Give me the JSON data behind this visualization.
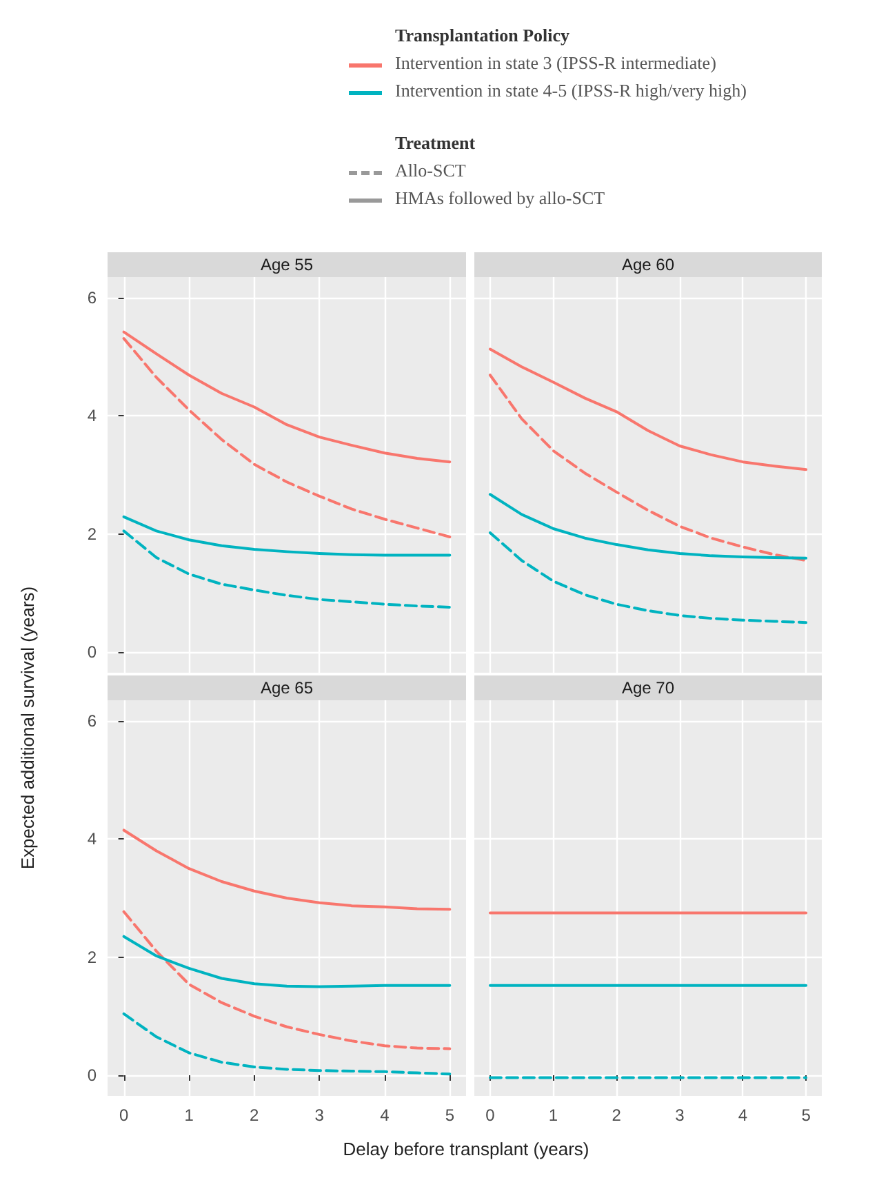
{
  "chart_data": [
    {
      "type": "line",
      "title": "Age 55",
      "legend": "top",
      "legend_title": "Transplantation Policy",
      "annotations": [
        "Treatment",
        "Allo-SCT",
        "HMAs followed by allo-SCT"
      ],
      "x": [
        0,
        0.5,
        1,
        1.5,
        2,
        2.5,
        3,
        3.5,
        4,
        4.5,
        5
      ],
      "xlim": [
        -0.25,
        5.25
      ],
      "xticks": [
        0,
        1,
        2,
        3,
        4,
        5
      ],
      "ylim": [
        -0.35,
        6.35
      ],
      "yticks": [
        0,
        2,
        4,
        6
      ],
      "grid": true,
      "tick_labels": "y",
      "series": [
        {
          "color": "#f8766d",
          "line_style": "dashed",
          "values": [
            5.31,
            4.65,
            4.1,
            3.6,
            3.18,
            2.88,
            2.64,
            2.42,
            2.25,
            2.1,
            1.95
          ]
        },
        {
          "name": "Intervention in state 3 (IPSS-R intermediate)",
          "color": "#f8766d",
          "line_style": "solid",
          "values": [
            5.42,
            5.05,
            4.69,
            4.38,
            4.15,
            3.85,
            3.64,
            3.5,
            3.37,
            3.28,
            3.22
          ]
        },
        {
          "color": "#00b3c0",
          "line_style": "dashed",
          "values": [
            2.05,
            1.6,
            1.32,
            1.15,
            1.05,
            0.96,
            0.89,
            0.85,
            0.81,
            0.78,
            0.76
          ]
        },
        {
          "name": "Intervention in state 4-5 (IPSS-R high/very high)",
          "color": "#00b3c0",
          "line_style": "solid",
          "values": [
            2.29,
            2.05,
            1.9,
            1.8,
            1.74,
            1.7,
            1.67,
            1.65,
            1.64,
            1.64,
            1.64
          ]
        }
      ]
    },
    {
      "type": "line",
      "title": "Age 60",
      "x": [
        0,
        0.5,
        1,
        1.5,
        2,
        2.5,
        3,
        3.5,
        4,
        4.5,
        5
      ],
      "xlim": [
        -0.25,
        5.25
      ],
      "xticks": [
        0,
        1,
        2,
        3,
        4,
        5
      ],
      "ylim": [
        -0.35,
        6.35
      ],
      "yticks": [
        0,
        2,
        4,
        6
      ],
      "grid": true,
      "tick_labels": false,
      "series": [
        {
          "color": "#f8766d",
          "line_style": "dashed",
          "values": [
            4.69,
            3.95,
            3.41,
            3.03,
            2.71,
            2.4,
            2.13,
            1.93,
            1.78,
            1.65,
            1.55
          ]
        },
        {
          "color": "#f8766d",
          "line_style": "solid",
          "values": [
            5.13,
            4.83,
            4.57,
            4.3,
            4.07,
            3.75,
            3.49,
            3.34,
            3.22,
            3.15,
            3.09
          ]
        },
        {
          "color": "#00b3c0",
          "line_style": "dashed",
          "values": [
            2.02,
            1.55,
            1.2,
            0.97,
            0.81,
            0.7,
            0.62,
            0.57,
            0.54,
            0.52,
            0.5
          ]
        },
        {
          "color": "#00b3c0",
          "line_style": "solid",
          "values": [
            2.67,
            2.33,
            2.09,
            1.93,
            1.82,
            1.73,
            1.67,
            1.63,
            1.61,
            1.6,
            1.59
          ]
        }
      ]
    },
    {
      "type": "line",
      "title": "Age 65",
      "xlabel": "Delay before transplant (years)",
      "ylabel": "Expected additional survival (years)",
      "x": [
        0,
        0.5,
        1,
        1.5,
        2,
        2.5,
        3,
        3.5,
        4,
        4.5,
        5
      ],
      "xlim": [
        -0.25,
        5.25
      ],
      "xticks": [
        0,
        1,
        2,
        3,
        4,
        5
      ],
      "ylim": [
        -0.35,
        6.35
      ],
      "yticks": [
        0,
        2,
        4,
        6
      ],
      "grid": true,
      "series": [
        {
          "color": "#f8766d",
          "line_style": "dashed",
          "values": [
            2.77,
            2.1,
            1.54,
            1.23,
            1.0,
            0.82,
            0.69,
            0.58,
            0.5,
            0.46,
            0.45
          ]
        },
        {
          "color": "#f8766d",
          "line_style": "solid",
          "values": [
            4.15,
            3.8,
            3.5,
            3.28,
            3.12,
            3.0,
            2.92,
            2.87,
            2.85,
            2.82,
            2.81
          ]
        },
        {
          "color": "#00b3c0",
          "line_style": "dashed",
          "values": [
            1.04,
            0.65,
            0.38,
            0.22,
            0.14,
            0.1,
            0.08,
            0.07,
            0.06,
            0.04,
            0.02
          ]
        },
        {
          "color": "#00b3c0",
          "line_style": "solid",
          "values": [
            2.35,
            2.02,
            1.81,
            1.64,
            1.55,
            1.51,
            1.5,
            1.51,
            1.52,
            1.52,
            1.52
          ]
        }
      ]
    },
    {
      "type": "line",
      "title": "Age 70",
      "x": [
        0,
        5
      ],
      "xlim": [
        -0.25,
        5.25
      ],
      "xticks": [
        0,
        1,
        2,
        3,
        4,
        5
      ],
      "ylim": [
        -0.35,
        6.35
      ],
      "yticks": [
        0,
        2,
        4,
        6
      ],
      "grid": true,
      "tick_labels": "x",
      "series": [
        {
          "color": "#f8766d",
          "line_style": "solid",
          "values": [
            2.75,
            2.75
          ]
        },
        {
          "color": "#00b3c0",
          "line_style": "dashed",
          "values": [
            -0.04,
            -0.04
          ]
        },
        {
          "color": "#00b3c0",
          "line_style": "solid",
          "values": [
            1.52,
            1.52
          ]
        }
      ]
    }
  ]
}
